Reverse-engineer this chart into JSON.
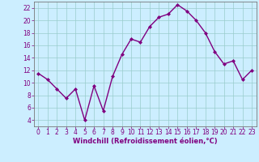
{
  "x": [
    0,
    1,
    2,
    3,
    4,
    5,
    6,
    7,
    8,
    9,
    10,
    11,
    12,
    13,
    14,
    15,
    16,
    17,
    18,
    19,
    20,
    21,
    22,
    23
  ],
  "y": [
    11.5,
    10.5,
    9.0,
    7.5,
    9.0,
    4.0,
    9.5,
    5.5,
    11.0,
    14.5,
    17.0,
    16.5,
    19.0,
    20.5,
    21.0,
    22.5,
    21.5,
    20.0,
    18.0,
    15.0,
    13.0,
    13.5,
    10.5,
    12.0
  ],
  "line_color": "#800080",
  "marker": "D",
  "markersize": 2.0,
  "linewidth": 1.0,
  "bg_color": "#cceeff",
  "grid_color": "#99cccc",
  "xlabel": "Windchill (Refroidissement éolien,°C)",
  "xlabel_color": "#800080",
  "tick_color": "#800080",
  "xlim": [
    -0.5,
    23.5
  ],
  "ylim": [
    3,
    23
  ],
  "yticks": [
    4,
    6,
    8,
    10,
    12,
    14,
    16,
    18,
    20,
    22
  ],
  "xticks": [
    0,
    1,
    2,
    3,
    4,
    5,
    6,
    7,
    8,
    9,
    10,
    11,
    12,
    13,
    14,
    15,
    16,
    17,
    18,
    19,
    20,
    21,
    22,
    23
  ],
  "tick_fontsize": 5.5,
  "xlabel_fontsize": 6.0
}
